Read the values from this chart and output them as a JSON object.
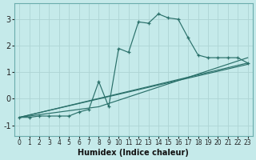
{
  "xlabel": "Humidex (Indice chaleur)",
  "xlim": [
    -0.5,
    23.5
  ],
  "ylim": [
    -1.4,
    3.6
  ],
  "yticks": [
    -1,
    0,
    1,
    2,
    3
  ],
  "xticks": [
    0,
    1,
    2,
    3,
    4,
    5,
    6,
    7,
    8,
    9,
    10,
    11,
    12,
    13,
    14,
    15,
    16,
    17,
    18,
    19,
    20,
    21,
    22,
    23
  ],
  "bg_color": "#c5eaea",
  "line_color": "#2a706a",
  "grid_color": "#aed4d4",
  "series": [
    {
      "x": [
        0,
        1,
        2,
        3,
        4,
        5,
        6,
        7,
        8,
        9,
        10,
        11,
        12,
        13,
        14,
        15,
        16,
        17,
        18,
        19,
        20,
        21,
        22,
        23
      ],
      "y": [
        -0.7,
        -0.7,
        -0.65,
        -0.65,
        -0.65,
        -0.65,
        -0.5,
        -0.4,
        0.65,
        -0.3,
        1.9,
        1.75,
        2.9,
        2.85,
        3.2,
        3.05,
        3.0,
        2.3,
        1.65,
        1.55,
        1.55,
        1.55,
        1.55,
        1.35
      ],
      "marker": true
    },
    {
      "x": [
        0,
        23
      ],
      "y": [
        -0.7,
        1.3
      ],
      "marker": false
    },
    {
      "x": [
        0,
        23
      ],
      "y": [
        -0.7,
        1.35
      ],
      "marker": false
    },
    {
      "x": [
        0,
        8,
        23
      ],
      "y": [
        -0.7,
        -0.3,
        1.55
      ],
      "marker": false
    }
  ]
}
